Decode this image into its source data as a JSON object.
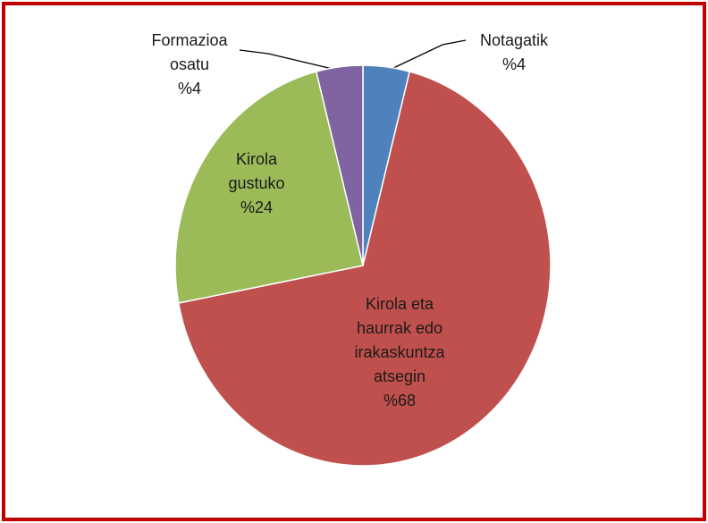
{
  "chart_data": {
    "type": "pie",
    "categories": [
      "Notagatik",
      "Kirola eta haurrak edo irakaskuntza atsegin",
      "Kirola gustuko",
      "Formazioa osatu"
    ],
    "values": [
      4,
      68,
      24,
      4
    ],
    "value_labels": [
      "%4",
      "%68",
      "%24",
      "%4"
    ],
    "colors": [
      "#4f81bd",
      "#c0504d",
      "#9bbb59",
      "#8064a2"
    ]
  }
}
